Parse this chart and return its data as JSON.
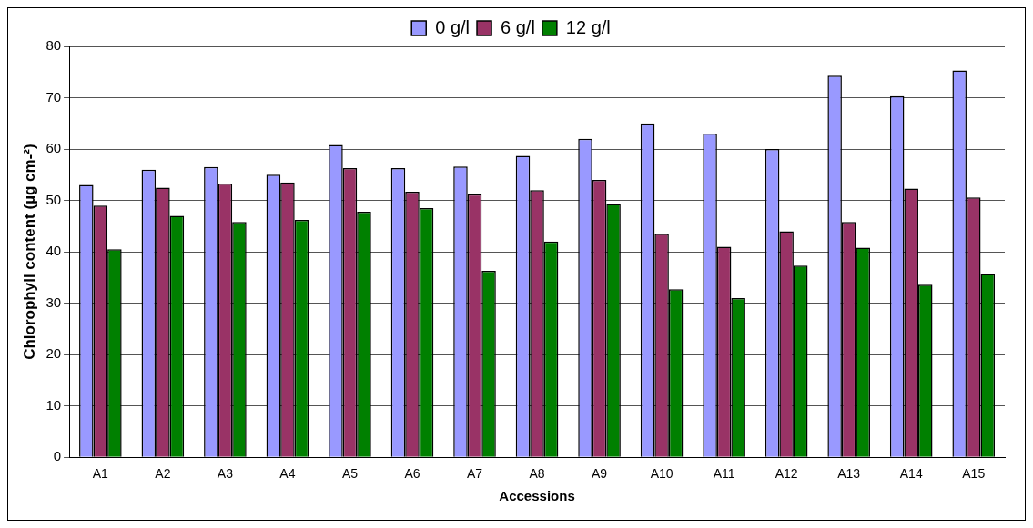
{
  "chart_data": {
    "type": "bar",
    "xlabel": "Accessions",
    "ylabel": "Chlorophyll content (µg cm-²)",
    "categories": [
      "A1",
      "A2",
      "A3",
      "A4",
      "A5",
      "A6",
      "A7",
      "A8",
      "A9",
      "A10",
      "A11",
      "A12",
      "A13",
      "A14",
      "A15"
    ],
    "series": [
      {
        "name": "0 g/l",
        "color": "#9999ff",
        "values": [
          53,
          56,
          56.5,
          55,
          60.8,
          56.3,
          56.6,
          58.7,
          62,
          65,
          63,
          60,
          74.3,
          70.3,
          75.3
        ]
      },
      {
        "name": "6 g/l",
        "color": "#993366",
        "values": [
          49,
          52.5,
          53.3,
          53.5,
          56.3,
          51.7,
          51.2,
          52,
          54,
          43.5,
          41,
          44,
          45.8,
          52.3,
          50.6
        ]
      },
      {
        "name": "12 g/l",
        "color": "#008000",
        "values": [
          40.5,
          47,
          45.8,
          46.2,
          47.8,
          48.5,
          36.3,
          42,
          49.3,
          32.7,
          31,
          37.3,
          40.8,
          33.6,
          35.7
        ]
      }
    ],
    "ylim": [
      0,
      80
    ],
    "yticks": [
      0,
      10,
      20,
      30,
      40,
      50,
      60,
      70,
      80
    ],
    "grid": "y",
    "legend": "top"
  }
}
